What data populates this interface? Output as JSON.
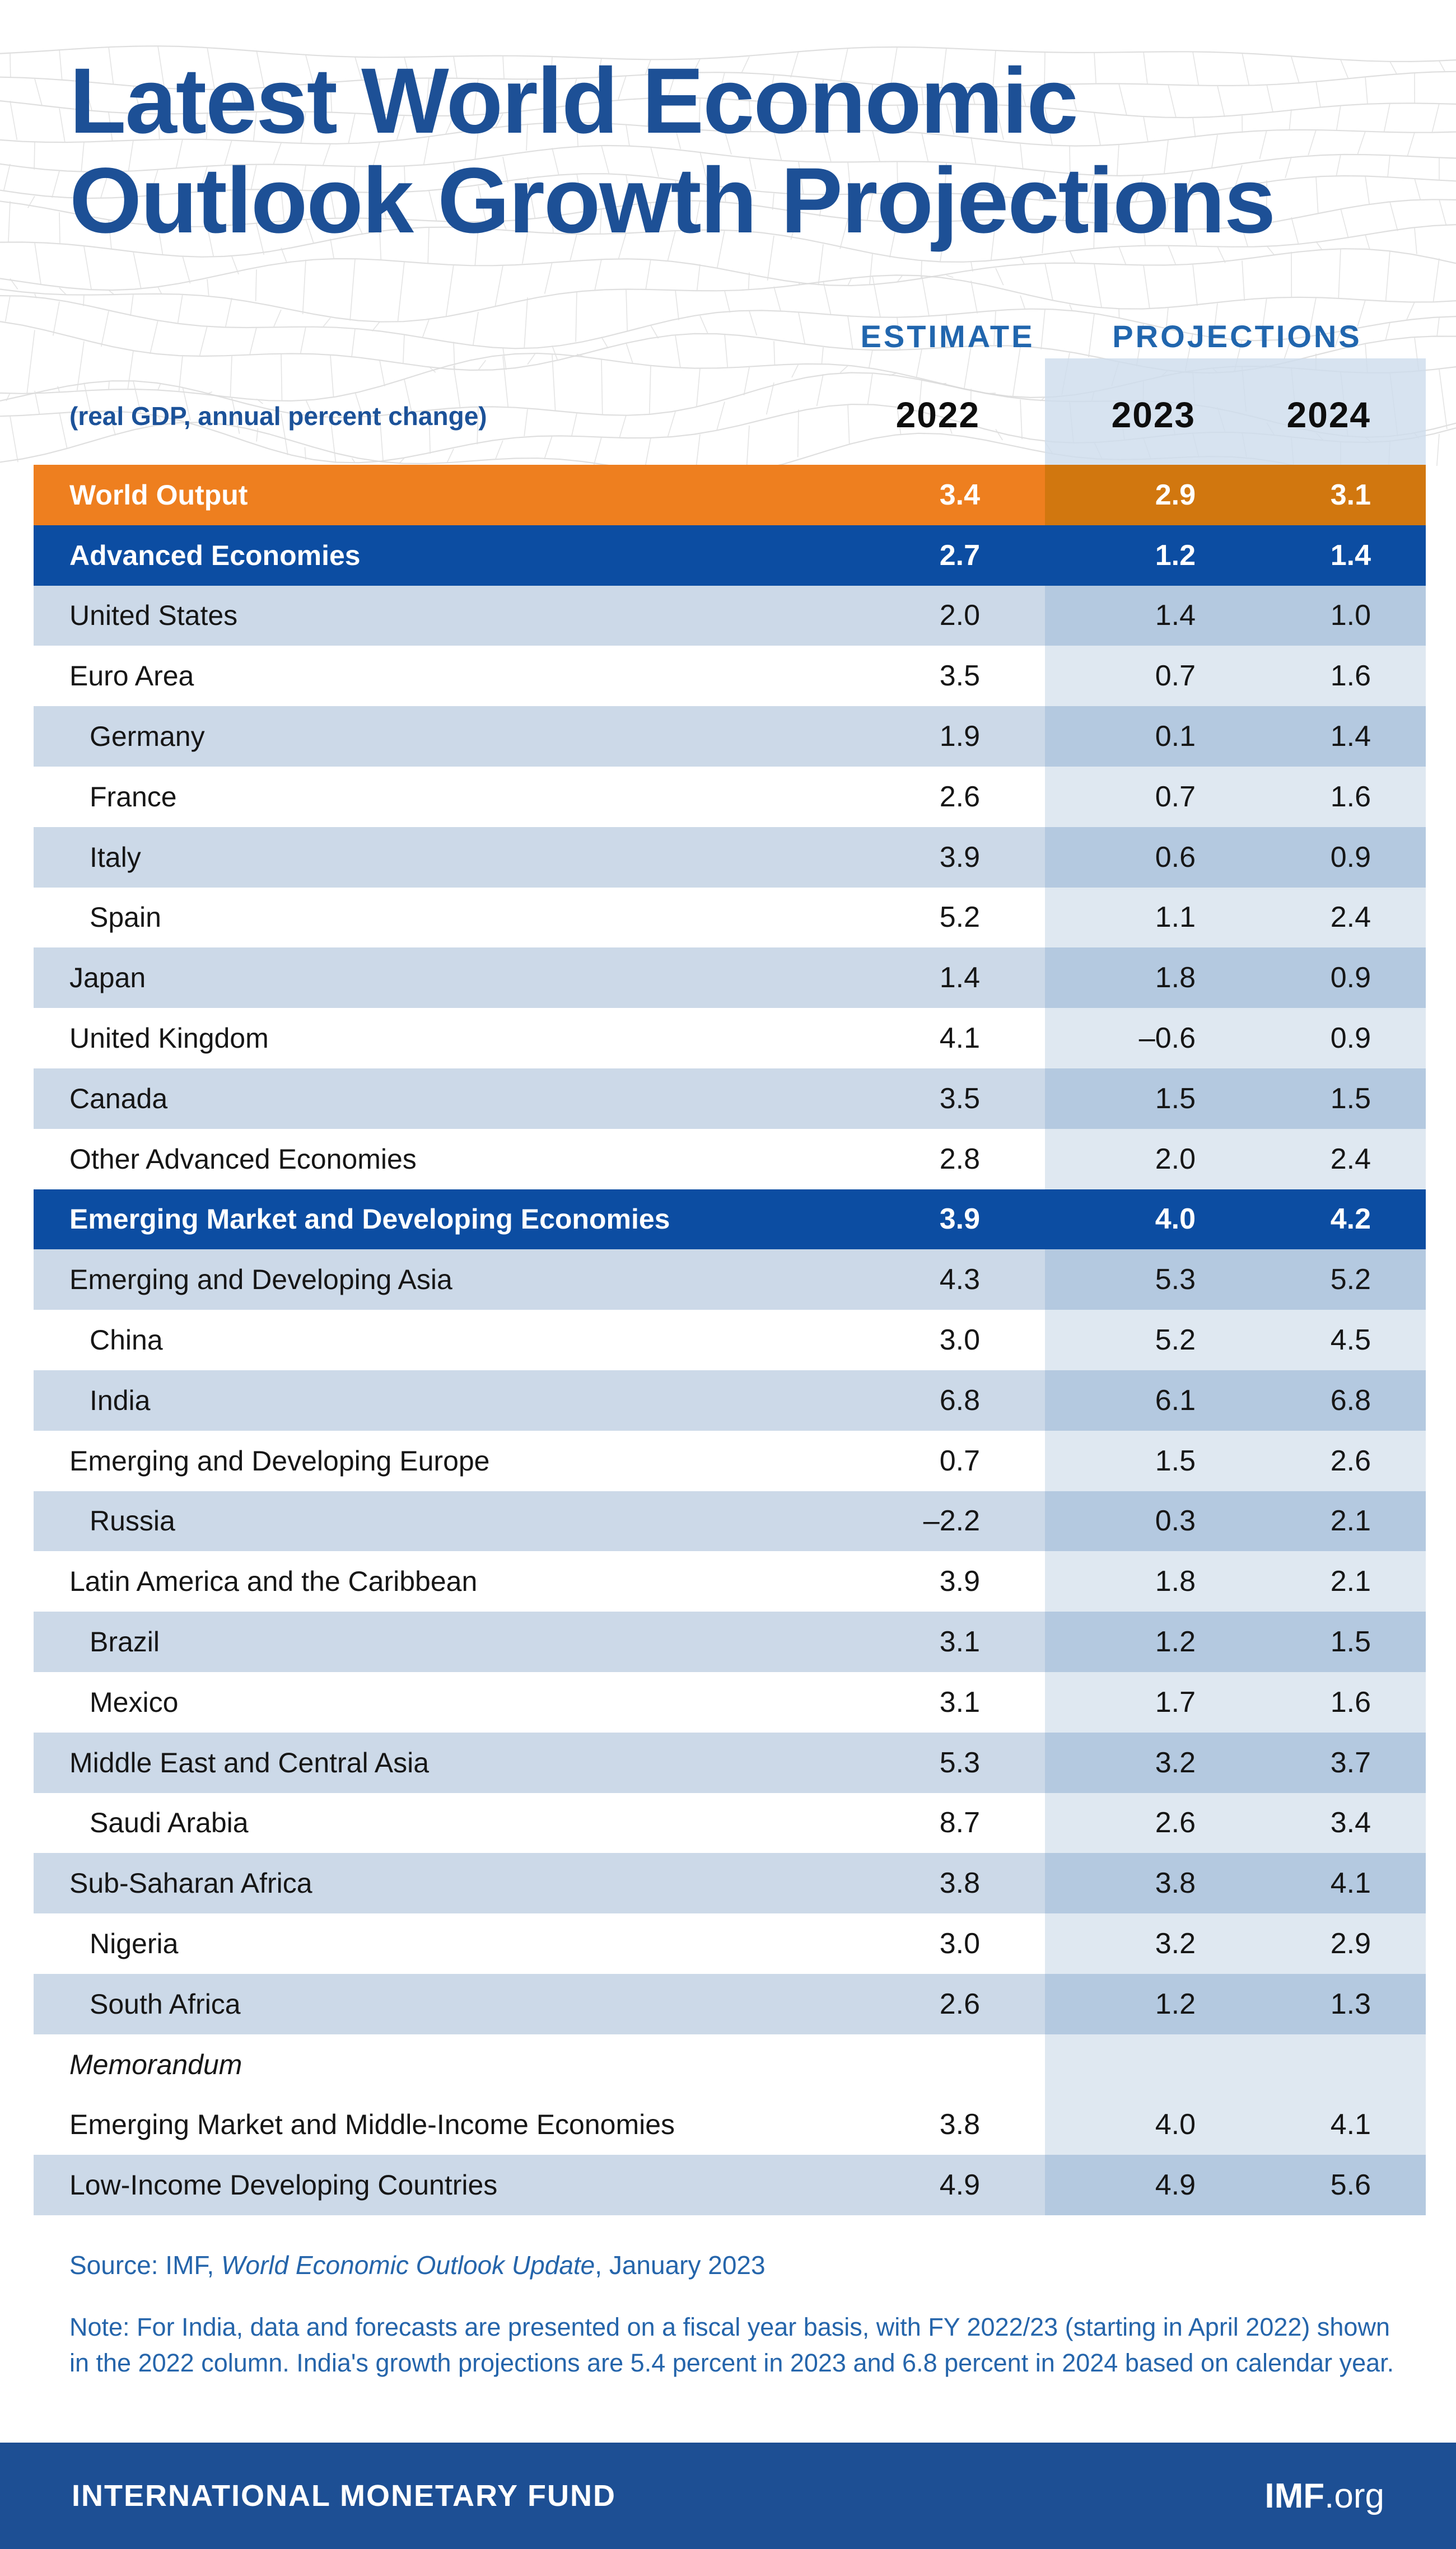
{
  "title": "Latest World Economic\nOutlook Growth Projections",
  "header": {
    "estimate_label": "ESTIMATE",
    "projections_label": "PROJECTIONS",
    "subtitle": "(real GDP, annual percent change)",
    "years": [
      "2022",
      "2023",
      "2024"
    ]
  },
  "table": {
    "rows": [
      {
        "label": "World Output",
        "type": "world",
        "indent": false,
        "values": [
          "3.4",
          "2.9",
          "3.1"
        ]
      },
      {
        "label": "Advanced Economies",
        "type": "section",
        "indent": false,
        "values": [
          "2.7",
          "1.2",
          "1.4"
        ]
      },
      {
        "label": "United States",
        "type": "lt",
        "indent": false,
        "values": [
          "2.0",
          "1.4",
          "1.0"
        ]
      },
      {
        "label": "Euro Area",
        "type": "white",
        "indent": false,
        "values": [
          "3.5",
          "0.7",
          "1.6"
        ]
      },
      {
        "label": "Germany",
        "type": "lt",
        "indent": true,
        "values": [
          "1.9",
          "0.1",
          "1.4"
        ]
      },
      {
        "label": "France",
        "type": "white",
        "indent": true,
        "values": [
          "2.6",
          "0.7",
          "1.6"
        ]
      },
      {
        "label": "Italy",
        "type": "lt",
        "indent": true,
        "values": [
          "3.9",
          "0.6",
          "0.9"
        ]
      },
      {
        "label": "Spain",
        "type": "white",
        "indent": true,
        "values": [
          "5.2",
          "1.1",
          "2.4"
        ]
      },
      {
        "label": "Japan",
        "type": "lt",
        "indent": false,
        "values": [
          "1.4",
          "1.8",
          "0.9"
        ]
      },
      {
        "label": "United Kingdom",
        "type": "white",
        "indent": false,
        "values": [
          "4.1",
          "–0.6",
          "0.9"
        ]
      },
      {
        "label": "Canada",
        "type": "lt",
        "indent": false,
        "values": [
          "3.5",
          "1.5",
          "1.5"
        ]
      },
      {
        "label": "Other Advanced Economies",
        "type": "white",
        "indent": false,
        "values": [
          "2.8",
          "2.0",
          "2.4"
        ]
      },
      {
        "label": "Emerging Market and Developing Economies",
        "type": "section",
        "indent": false,
        "values": [
          "3.9",
          "4.0",
          "4.2"
        ]
      },
      {
        "label": "Emerging and Developing Asia",
        "type": "lt",
        "indent": false,
        "values": [
          "4.3",
          "5.3",
          "5.2"
        ]
      },
      {
        "label": "China",
        "type": "white",
        "indent": true,
        "values": [
          "3.0",
          "5.2",
          "4.5"
        ]
      },
      {
        "label": "India",
        "type": "lt",
        "indent": true,
        "values": [
          "6.8",
          "6.1",
          "6.8"
        ]
      },
      {
        "label": "Emerging and Developing Europe",
        "type": "white",
        "indent": false,
        "values": [
          "0.7",
          "1.5",
          "2.6"
        ]
      },
      {
        "label": "Russia",
        "type": "lt",
        "indent": true,
        "values": [
          "–2.2",
          "0.3",
          "2.1"
        ]
      },
      {
        "label": "Latin America and the Caribbean",
        "type": "white",
        "indent": false,
        "values": [
          "3.9",
          "1.8",
          "2.1"
        ]
      },
      {
        "label": "Brazil",
        "type": "lt",
        "indent": true,
        "values": [
          "3.1",
          "1.2",
          "1.5"
        ]
      },
      {
        "label": "Mexico",
        "type": "white",
        "indent": true,
        "values": [
          "3.1",
          "1.7",
          "1.6"
        ]
      },
      {
        "label": "Middle East and Central Asia",
        "type": "lt",
        "indent": false,
        "values": [
          "5.3",
          "3.2",
          "3.7"
        ]
      },
      {
        "label": "Saudi Arabia",
        "type": "white",
        "indent": true,
        "values": [
          "8.7",
          "2.6",
          "3.4"
        ]
      },
      {
        "label": "Sub-Saharan Africa",
        "type": "lt",
        "indent": false,
        "values": [
          "3.8",
          "3.8",
          "4.1"
        ]
      },
      {
        "label": "Nigeria",
        "type": "white",
        "indent": true,
        "values": [
          "3.0",
          "3.2",
          "2.9"
        ]
      },
      {
        "label": "South Africa",
        "type": "lt",
        "indent": true,
        "values": [
          "2.6",
          "1.2",
          "1.3"
        ]
      },
      {
        "label": "Memorandum",
        "type": "memo",
        "indent": false,
        "values": [
          "",
          "",
          ""
        ]
      },
      {
        "label": "Emerging Market and Middle-Income Economies",
        "type": "white",
        "indent": false,
        "values": [
          "3.8",
          "4.0",
          "4.1"
        ]
      },
      {
        "label": "Low-Income Developing Countries",
        "type": "lt",
        "indent": false,
        "values": [
          "4.9",
          "4.9",
          "5.6"
        ]
      }
    ]
  },
  "footnotes": {
    "source_prefix": "Source: IMF, ",
    "source_italic": "World Economic Outlook Update",
    "source_suffix": ", January 2023",
    "note": "Note: For India, data and forecasts are presented on a fiscal year basis, with FY 2022/23 (starting in April 2022) shown in the 2022 column. India's growth projections are 5.4 percent in 2023 and 6.8 percent in 2024 based on calendar year."
  },
  "footer": {
    "org_name": "INTERNATIONAL MONETARY FUND",
    "site_bold": "IMF",
    "site_suffix": ".org"
  },
  "colors": {
    "title_blue": "#1d5096",
    "header_label_blue": "#2166ae",
    "section_blue": "#0c4da2",
    "world_orange": "#ee7f1f",
    "world_orange_projection": "#d1770f",
    "row_light_blue": "#ccd9e8",
    "row_light_blue_projection": "#b4c9e0",
    "row_white_projection": "#dfe8f1",
    "footnote_blue": "#2565ab",
    "footer_bar_blue": "#1d4f94"
  },
  "chart_data": {
    "type": "table",
    "title": "Latest World Economic Outlook Growth Projections",
    "subtitle": "(real GDP, annual percent change)",
    "columns": [
      "2022 Estimate",
      "2023 Projections",
      "2024 Projections"
    ],
    "rows": [
      {
        "label": "World Output",
        "values": [
          3.4,
          2.9,
          3.1
        ]
      },
      {
        "label": "Advanced Economies",
        "values": [
          2.7,
          1.2,
          1.4
        ]
      },
      {
        "label": "United States",
        "values": [
          2.0,
          1.4,
          1.0
        ]
      },
      {
        "label": "Euro Area",
        "values": [
          3.5,
          0.7,
          1.6
        ]
      },
      {
        "label": "Germany",
        "values": [
          1.9,
          0.1,
          1.4
        ]
      },
      {
        "label": "France",
        "values": [
          2.6,
          0.7,
          1.6
        ]
      },
      {
        "label": "Italy",
        "values": [
          3.9,
          0.6,
          0.9
        ]
      },
      {
        "label": "Spain",
        "values": [
          5.2,
          1.1,
          2.4
        ]
      },
      {
        "label": "Japan",
        "values": [
          1.4,
          1.8,
          0.9
        ]
      },
      {
        "label": "United Kingdom",
        "values": [
          4.1,
          -0.6,
          0.9
        ]
      },
      {
        "label": "Canada",
        "values": [
          3.5,
          1.5,
          1.5
        ]
      },
      {
        "label": "Other Advanced Economies",
        "values": [
          2.8,
          2.0,
          2.4
        ]
      },
      {
        "label": "Emerging Market and Developing Economies",
        "values": [
          3.9,
          4.0,
          4.2
        ]
      },
      {
        "label": "Emerging and Developing Asia",
        "values": [
          4.3,
          5.3,
          5.2
        ]
      },
      {
        "label": "China",
        "values": [
          3.0,
          5.2,
          4.5
        ]
      },
      {
        "label": "India",
        "values": [
          6.8,
          6.1,
          6.8
        ]
      },
      {
        "label": "Emerging and Developing Europe",
        "values": [
          0.7,
          1.5,
          2.6
        ]
      },
      {
        "label": "Russia",
        "values": [
          -2.2,
          0.3,
          2.1
        ]
      },
      {
        "label": "Latin America and the Caribbean",
        "values": [
          3.9,
          1.8,
          2.1
        ]
      },
      {
        "label": "Brazil",
        "values": [
          3.1,
          1.2,
          1.5
        ]
      },
      {
        "label": "Mexico",
        "values": [
          3.1,
          1.7,
          1.6
        ]
      },
      {
        "label": "Middle East and Central Asia",
        "values": [
          5.3,
          3.2,
          3.7
        ]
      },
      {
        "label": "Saudi Arabia",
        "values": [
          8.7,
          2.6,
          3.4
        ]
      },
      {
        "label": "Sub-Saharan Africa",
        "values": [
          3.8,
          3.8,
          4.1
        ]
      },
      {
        "label": "Nigeria",
        "values": [
          3.0,
          3.2,
          2.9
        ]
      },
      {
        "label": "South Africa",
        "values": [
          2.6,
          1.2,
          1.3
        ]
      },
      {
        "label": "Memorandum",
        "values": null
      },
      {
        "label": "Emerging Market and Middle-Income Economies",
        "values": [
          3.8,
          4.0,
          4.1
        ]
      },
      {
        "label": "Low-Income Developing Countries",
        "values": [
          4.9,
          4.9,
          5.6
        ]
      }
    ]
  }
}
